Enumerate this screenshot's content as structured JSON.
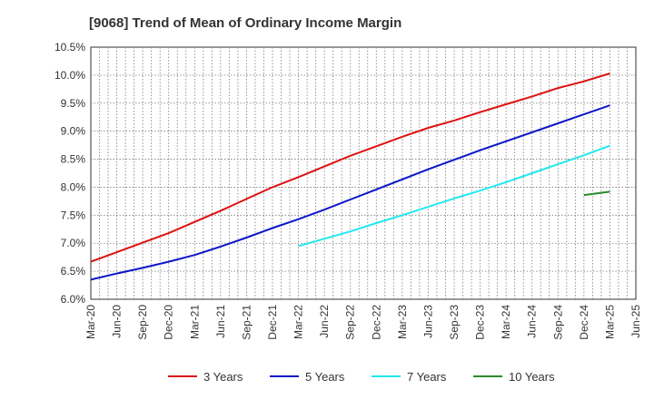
{
  "chart_data": {
    "type": "line",
    "title": "[9068]  Trend of Mean of Ordinary Income Margin",
    "xlabel": "",
    "ylabel": "",
    "x_ticks": [
      "Mar-20",
      "Jun-20",
      "Sep-20",
      "Dec-20",
      "Mar-21",
      "Jun-21",
      "Sep-21",
      "Dec-21",
      "Mar-22",
      "Jun-22",
      "Sep-22",
      "Dec-22",
      "Mar-23",
      "Jun-23",
      "Sep-23",
      "Dec-23",
      "Mar-24",
      "Jun-24",
      "Sep-24",
      "Dec-24",
      "Mar-25",
      "Jun-25"
    ],
    "y_ticks": [
      "6.0%",
      "6.5%",
      "7.0%",
      "7.5%",
      "8.0%",
      "8.5%",
      "9.0%",
      "9.5%",
      "10.0%",
      "10.5%"
    ],
    "ylim": [
      6.0,
      10.5
    ],
    "grid": true,
    "legend_position": "bottom",
    "series": [
      {
        "name": "3 Years",
        "color": "#dd1111",
        "points": [
          [
            "Mar-20",
            6.67
          ],
          [
            "Jun-20",
            6.84
          ],
          [
            "Sep-20",
            7.01
          ],
          [
            "Dec-20",
            7.18
          ],
          [
            "Mar-21",
            7.38
          ],
          [
            "Jun-21",
            7.58
          ],
          [
            "Sep-21",
            7.79
          ],
          [
            "Dec-21",
            8.0
          ],
          [
            "Mar-22",
            8.18
          ],
          [
            "Jun-22",
            8.37
          ],
          [
            "Sep-22",
            8.56
          ],
          [
            "Dec-22",
            8.73
          ],
          [
            "Mar-23",
            8.9
          ],
          [
            "Jun-23",
            9.06
          ],
          [
            "Sep-23",
            9.19
          ],
          [
            "Dec-23",
            9.34
          ],
          [
            "Mar-24",
            9.48
          ],
          [
            "Jun-24",
            9.62
          ],
          [
            "Sep-24",
            9.77
          ],
          [
            "Dec-24",
            9.89
          ],
          [
            "Mar-25",
            10.03
          ]
        ]
      },
      {
        "name": "5 Years",
        "color": "#0b16c8",
        "points": [
          [
            "Mar-20",
            6.35
          ],
          [
            "Jun-20",
            6.46
          ],
          [
            "Sep-20",
            6.56
          ],
          [
            "Dec-20",
            6.67
          ],
          [
            "Mar-21",
            6.79
          ],
          [
            "Jun-21",
            6.94
          ],
          [
            "Sep-21",
            7.1
          ],
          [
            "Dec-21",
            7.27
          ],
          [
            "Mar-22",
            7.43
          ],
          [
            "Jun-22",
            7.6
          ],
          [
            "Sep-22",
            7.78
          ],
          [
            "Dec-22",
            7.96
          ],
          [
            "Mar-23",
            8.14
          ],
          [
            "Jun-23",
            8.32
          ],
          [
            "Sep-23",
            8.49
          ],
          [
            "Dec-23",
            8.66
          ],
          [
            "Mar-24",
            8.82
          ],
          [
            "Jun-24",
            8.98
          ],
          [
            "Sep-24",
            9.14
          ],
          [
            "Dec-24",
            9.3
          ],
          [
            "Mar-25",
            9.46
          ]
        ]
      },
      {
        "name": "7 Years",
        "color": "#22e8ee",
        "points": [
          [
            "Mar-22",
            6.95
          ],
          [
            "Jun-22",
            7.08
          ],
          [
            "Sep-22",
            7.21
          ],
          [
            "Dec-22",
            7.36
          ],
          [
            "Mar-23",
            7.5
          ],
          [
            "Jun-23",
            7.65
          ],
          [
            "Sep-23",
            7.8
          ],
          [
            "Dec-23",
            7.94
          ],
          [
            "Mar-24",
            8.09
          ],
          [
            "Jun-24",
            8.25
          ],
          [
            "Sep-24",
            8.41
          ],
          [
            "Dec-24",
            8.57
          ],
          [
            "Mar-25",
            8.74
          ]
        ]
      },
      {
        "name": "10 Years",
        "color": "#2a8a2a",
        "points": [
          [
            "Dec-24",
            7.86
          ],
          [
            "Mar-25",
            7.92
          ]
        ]
      }
    ]
  }
}
